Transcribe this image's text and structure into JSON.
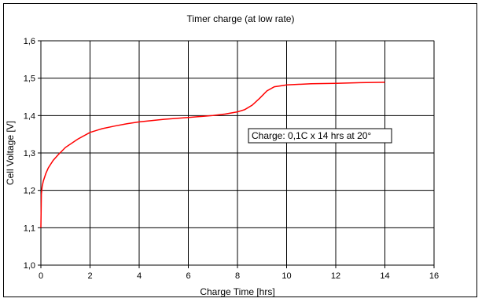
{
  "chart_data": {
    "type": "line",
    "title": "Timer charge (at low rate)",
    "xlabel": "Charge Time [hrs]",
    "ylabel": "Cell Voltage [V]",
    "xlim": [
      0,
      16
    ],
    "ylim": [
      1.0,
      1.6
    ],
    "x_ticks": [
      0,
      2,
      4,
      6,
      8,
      10,
      12,
      14,
      16
    ],
    "y_ticks": [
      1.0,
      1.1,
      1.2,
      1.3,
      1.4,
      1.5,
      1.6
    ],
    "x_tick_labels": [
      "0",
      "2",
      "4",
      "6",
      "8",
      "10",
      "12",
      "14",
      "16"
    ],
    "y_tick_labels": [
      "1,0",
      "1,1",
      "1,2",
      "1,3",
      "1,4",
      "1,5",
      "1,6"
    ],
    "grid": true,
    "series": [
      {
        "color": "#ff0000",
        "x": [
          0,
          0.02,
          0.05,
          0.1,
          0.2,
          0.3,
          0.5,
          0.7,
          1.0,
          1.5,
          2.0,
          2.5,
          3.0,
          3.5,
          4.0,
          5.0,
          6.0,
          7.0,
          7.5,
          8.0,
          8.3,
          8.6,
          8.9,
          9.2,
          9.5,
          9.8,
          10.0,
          11.0,
          12.0,
          13.0,
          14.0
        ],
        "y": [
          1.1,
          1.19,
          1.21,
          1.225,
          1.245,
          1.26,
          1.28,
          1.295,
          1.315,
          1.337,
          1.355,
          1.365,
          1.372,
          1.378,
          1.383,
          1.39,
          1.395,
          1.4,
          1.404,
          1.41,
          1.416,
          1.428,
          1.446,
          1.466,
          1.477,
          1.48,
          1.482,
          1.485,
          1.486,
          1.488,
          1.489
        ]
      }
    ],
    "annotation": "Charge: 0,1C x 14 hrs at 20°"
  }
}
